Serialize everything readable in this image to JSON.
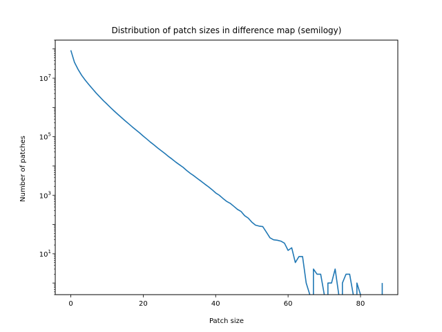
{
  "chart_data": {
    "type": "line",
    "title": "Distribution of patch sizes in difference map (semilogy)",
    "xlabel": "Patch size",
    "ylabel": "Number of patches",
    "xlim": [
      -4.3,
      90.3
    ],
    "ylim": [
      0.4,
      200000000
    ],
    "yscale": "log",
    "xticks": [
      0,
      20,
      40,
      60,
      80
    ],
    "yticks": [
      {
        "value": 10,
        "base": "10",
        "exp": "1"
      },
      {
        "value": 1000,
        "base": "10",
        "exp": "3"
      },
      {
        "value": 100000,
        "base": "10",
        "exp": "5"
      },
      {
        "value": 10000000,
        "base": "10",
        "exp": "7"
      }
    ],
    "grid": false,
    "legend": "none",
    "series": [
      {
        "color": "#1f77b4",
        "x": [
          0,
          1,
          2,
          3,
          4,
          5,
          6,
          7,
          8,
          9,
          10,
          11,
          12,
          13,
          14,
          15,
          16,
          17,
          18,
          19,
          20,
          21,
          22,
          23,
          24,
          25,
          26,
          27,
          28,
          29,
          30,
          31,
          32,
          33,
          34,
          35,
          36,
          37,
          38,
          39,
          40,
          41,
          42,
          43,
          44,
          45,
          46,
          47,
          48,
          49,
          50,
          51,
          52,
          53,
          54,
          55,
          56,
          57,
          58,
          59,
          60,
          61,
          62,
          63,
          64,
          65,
          66,
          67,
          68,
          69,
          70,
          71,
          72,
          73,
          74,
          75,
          76,
          77,
          78,
          79,
          80,
          81,
          82,
          83,
          84,
          85,
          86
        ],
        "y": [
          90000000,
          35000000,
          20000000,
          12500000,
          8500000,
          6000000,
          4300000,
          3100000,
          2300000,
          1700000,
          1300000,
          980000,
          750000,
          580000,
          450000,
          350000,
          275000,
          215000,
          170000,
          135000,
          105000,
          83000,
          65000,
          52000,
          41000,
          33000,
          26500,
          21000,
          17000,
          13500,
          11000,
          9000,
          7000,
          5600,
          4600,
          3700,
          3000,
          2400,
          1950,
          1550,
          1200,
          1000,
          780,
          620,
          530,
          420,
          330,
          280,
          200,
          165,
          120,
          95,
          88,
          85,
          55,
          35,
          30,
          29,
          27,
          23,
          13,
          16,
          5,
          8,
          8,
          1,
          null,
          3,
          2,
          2,
          null,
          1,
          1,
          3,
          null,
          1,
          2,
          2,
          null,
          1,
          null,
          null,
          null,
          null,
          null,
          null,
          1
        ]
      }
    ]
  }
}
